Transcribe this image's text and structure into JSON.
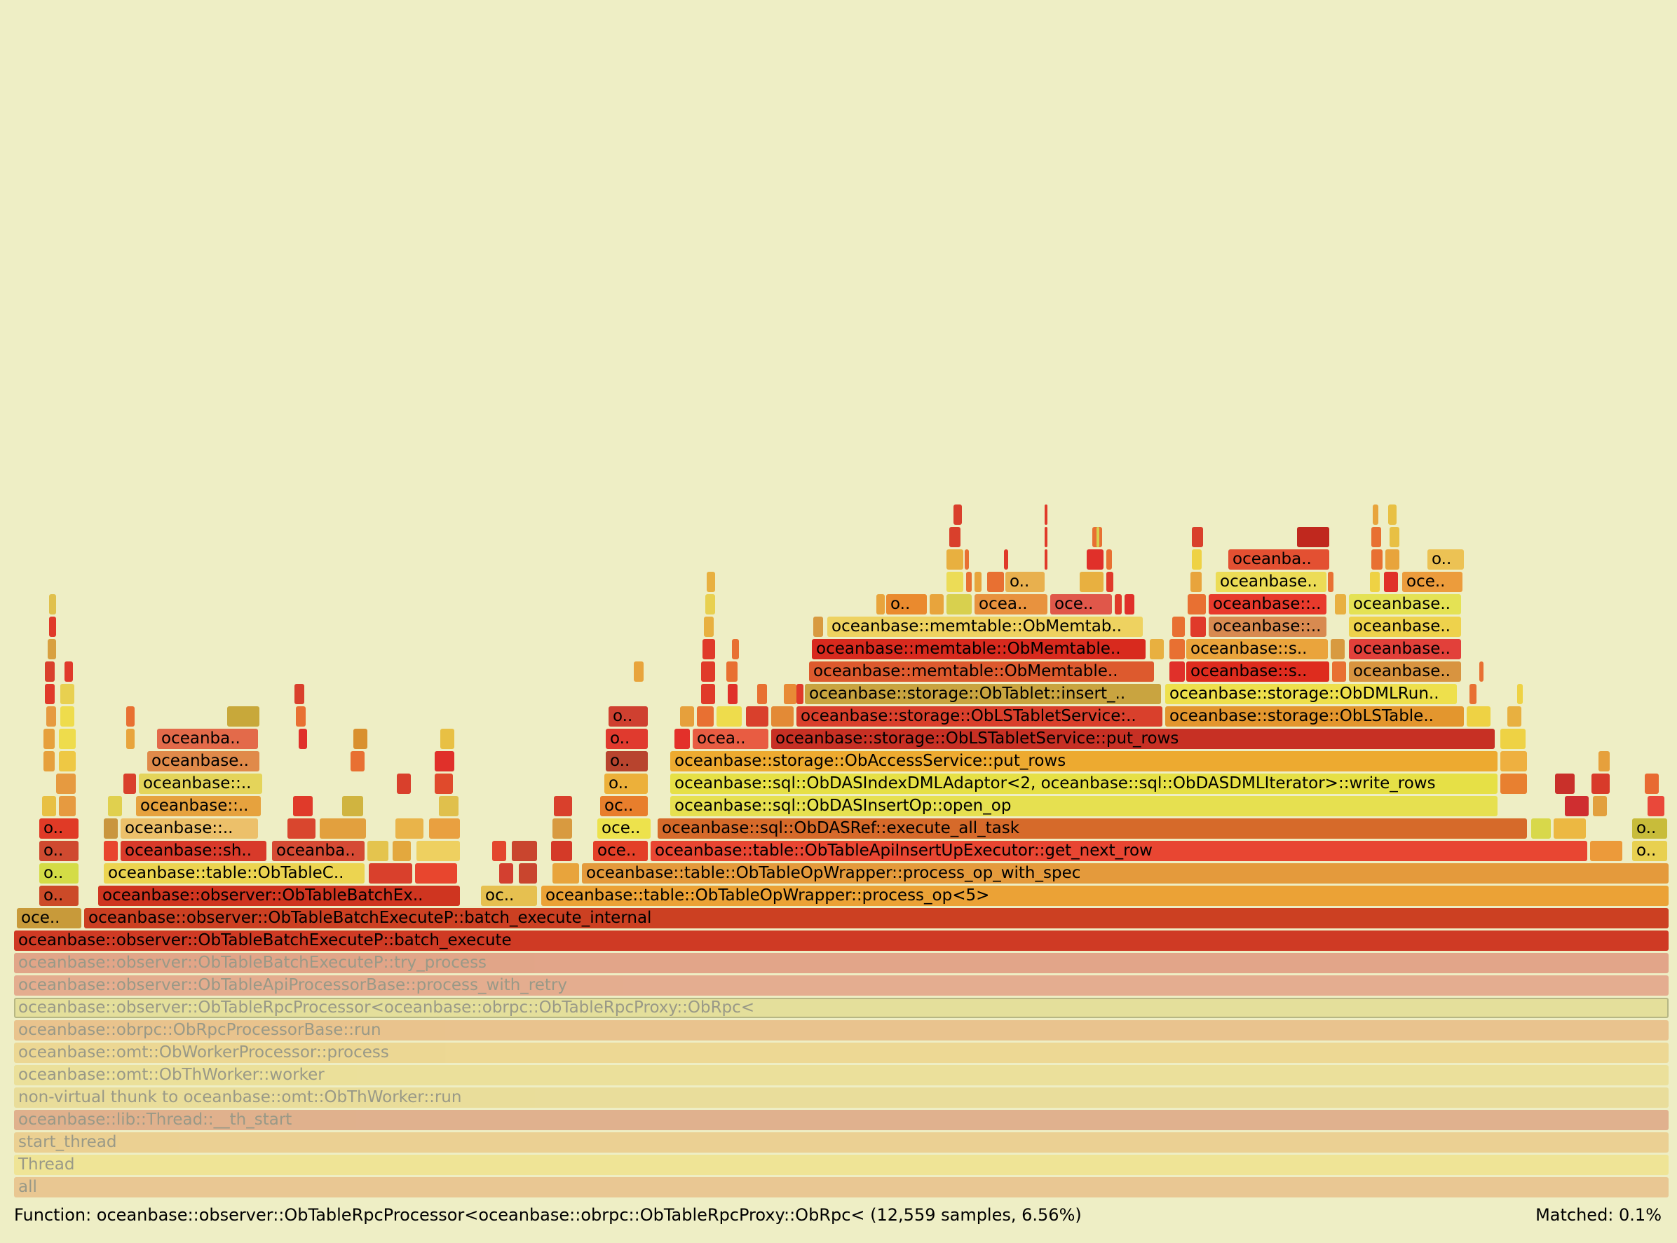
{
  "status": {
    "function_label": "Function: oceanbase::observer::ObTableRpcProcessor<oceanbase::obrpc::ObTableRpcProxy::ObRpc< (12,559 samples, 6.56%)",
    "matched_label": "Matched: 0.1%"
  },
  "frames": [
    {
      "name": "all",
      "color": "#e6a86a",
      "dim": true
    },
    {
      "name": "Thread",
      "color": "#f0dc70",
      "dim": true
    },
    {
      "name": "start_thread",
      "color": "#e9b86a",
      "dim": true
    },
    {
      "name": "oceanbase::lib::Thread::__th_start",
      "color": "#d68060",
      "dim": true
    },
    {
      "name": "non-virtual thunk to oceanbase::omt::ObThWorker::run",
      "color": "#e6d078",
      "dim": true
    },
    {
      "name": "oceanbase::omt::ObThWorker::worker",
      "color": "#e9d578",
      "dim": true
    },
    {
      "name": "oceanbase::omt::ObWorkerProcessor::process",
      "color": "#ecc66c",
      "dim": true
    },
    {
      "name": "oceanbase::obrpc::ObRpcProcessorBase::run",
      "color": "#e6a060",
      "dim": true
    },
    {
      "name": "oceanbase::observer::ObTableRpcProcessor<oceanbase::obrpc::ObTableRpcProxy::ObRpc<",
      "color": "#dcd47a",
      "dim": true,
      "selected": true
    },
    {
      "name": "oceanbase::observer::ObTableApiProcessorBase::process_with_retry",
      "color": "#dc7864",
      "dim": true
    },
    {
      "name": "oceanbase::observer::ObTableBatchExecuteP::try_process",
      "color": "#d86a58",
      "dim": true
    },
    {
      "name": "oceanbase::observer::ObTableBatchExecuteP::batch_execute",
      "color": "#cf3a24"
    },
    {
      "name": "oceanbase::observer::ObTableBatchExecuteP::batch_execute_internal",
      "color": "#cc4022"
    },
    {
      "name": "oce..",
      "color": "#c89a3a"
    },
    {
      "name": "oceanbase::table::ObTableOpWrapper::process_op<5>",
      "color": "#eba236"
    },
    {
      "name": "oc..",
      "color": "#e6c050"
    },
    {
      "name": "oceanbase::observer::ObTableBatchEx..",
      "color": "#cf3520"
    },
    {
      "name": "o..",
      "color": "#cc4a28"
    },
    {
      "name": "oceanbase::table::ObTableOpWrapper::process_op_with_spec",
      "color": "#e49a3c"
    },
    {
      "name": "oceanbase::table::ObTableC..",
      "color": "#ecd450"
    },
    {
      "name": "o..",
      "color": "#d4dc46"
    },
    {
      "name": "oceanbase::table::ObTableApiInsertUpExecutor::get_next_row",
      "color": "#e84632"
    },
    {
      "name": "oce..",
      "color": "#e34028"
    },
    {
      "name": "oceanbase::sh..",
      "color": "#d83a2a"
    },
    {
      "name": "oceanba..",
      "color": "#d54a34"
    },
    {
      "name": "oc..",
      "color": "#e53c2e"
    },
    {
      "name": "oc..",
      "color": "#e6462e"
    },
    {
      "name": "o..",
      "color": "#cf4a30"
    },
    {
      "name": "o..",
      "color": "#e8d050"
    },
    {
      "name": "oceanbase::sql::ObDASRef::execute_all_task",
      "color": "#d66a2a"
    },
    {
      "name": "oce..",
      "color": "#ede24c"
    },
    {
      "name": "oceanbase::..",
      "color": "#ecc06a"
    },
    {
      "name": "o..",
      "color": "#e03a26"
    },
    {
      "name": "o..",
      "color": "#c8bc3a"
    },
    {
      "name": "oceanbase::sql::ObDASInsertOp::open_op",
      "color": "#e6e050"
    },
    {
      "name": "oc..",
      "color": "#e87e2c"
    },
    {
      "name": "oceanbase::..",
      "color": "#e6a23e"
    },
    {
      "name": "oceanbase::sql::ObDASIndexDMLAdaptor<2, oceanbase::sql::ObDASDMLIterator>::write_rows",
      "color": "#e6e046"
    },
    {
      "name": "o..",
      "color": "#ecb03a"
    },
    {
      "name": "oceanbase::..",
      "color": "#e4d45a"
    },
    {
      "name": "oceanbase::storage::ObAccessService::put_rows",
      "color": "#edaa30"
    },
    {
      "name": "o..",
      "color": "#b8442e"
    },
    {
      "name": "oceanbase..",
      "color": "#e08a4a"
    },
    {
      "name": "oceanbase::storage::ObLSTabletService::put_rows",
      "color": "#c73024"
    },
    {
      "name": "ocea..",
      "color": "#e85c42"
    },
    {
      "name": "o..",
      "color": "#e03a2e"
    },
    {
      "name": "oceanba..",
      "color": "#e36a4a"
    },
    {
      "name": "oceanbase::storage::ObLSTabletService:..",
      "color": "#d9402c"
    },
    {
      "name": "oceanbase::storage::ObLSTable..",
      "color": "#e3962e"
    },
    {
      "name": "o..",
      "color": "#cf4030"
    },
    {
      "name": "oceanbase::storage::ObTablet::insert_..",
      "color": "#c9a440"
    },
    {
      "name": "oceanbase::storage::ObDMLRun..",
      "color": "#eee04c"
    },
    {
      "name": "oceanbase::memtable::ObMemtable..",
      "color": "#dd5a2e"
    },
    {
      "name": "oceanbase::s..",
      "color": "#de2c1e"
    },
    {
      "name": "oceanbase..",
      "color": "#d89440"
    },
    {
      "name": "oceanbase::memtable::ObMemtable..",
      "color": "#d82a1e"
    },
    {
      "name": "oceanbase::s..",
      "color": "#eaa43c"
    },
    {
      "name": "oceanbase..",
      "color": "#e2403a"
    },
    {
      "name": "oceanbase::memtable::ObMemtab..",
      "color": "#eed260"
    },
    {
      "name": "oceanbase::..",
      "color": "#d88a50"
    },
    {
      "name": "oceanbase..",
      "color": "#eed24c"
    },
    {
      "name": "o..",
      "color": "#ea8a2e"
    },
    {
      "name": "ocea..",
      "color": "#e8923e"
    },
    {
      "name": "oce..",
      "color": "#e0574a"
    },
    {
      "name": "oceanbase::..",
      "color": "#e83a2c"
    },
    {
      "name": "oceanbase..",
      "color": "#e4e254"
    },
    {
      "name": "o..",
      "color": "#e8b04e"
    },
    {
      "name": "oceanbase..",
      "color": "#ecdc56"
    },
    {
      "name": "oce..",
      "color": "#ec9c3c"
    },
    {
      "name": "oceanba..",
      "color": "#e35032"
    },
    {
      "name": "o..",
      "color": "#ecc254"
    }
  ]
}
